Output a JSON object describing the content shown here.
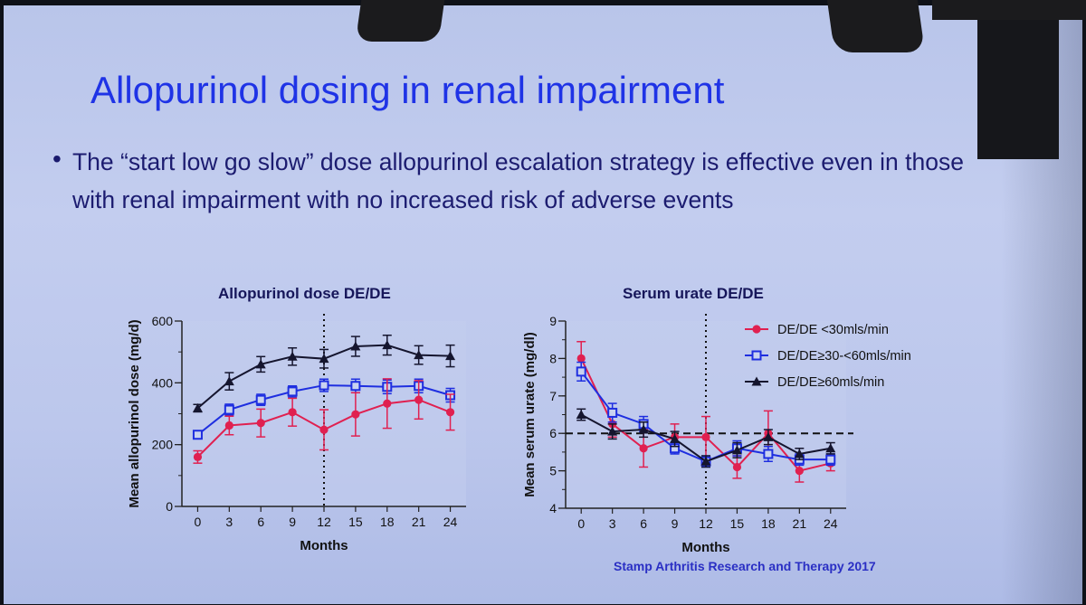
{
  "slide": {
    "title": "Allopurinol dosing in renal impairment",
    "bullet_symbol": "•",
    "bullet": "The “start low go slow” dose allopurinol escalation strategy is effective even in those with renal impairment with no increased risk of adverse events",
    "citation": "Stamp Arthritis Research and Therapy 2017"
  },
  "chart_data": [
    {
      "type": "line",
      "title": "Allopurinol dose DE/DE",
      "xlabel": "Months",
      "ylabel": "Mean allopurinol dose (mg/d)",
      "x": [
        0,
        3,
        6,
        9,
        12,
        15,
        18,
        21,
        24
      ],
      "x_ticks": [
        "0",
        "3",
        "6",
        "9",
        "12",
        "15",
        "18",
        "21",
        "24"
      ],
      "xlim": [
        -1.5,
        25.5
      ],
      "ylim": [
        0,
        600
      ],
      "y_ticks": [
        0,
        200,
        400,
        600
      ],
      "y_tick_labels": [
        "0",
        "200",
        "400",
        "600"
      ],
      "minor_tick_step": 100,
      "vline_x": 12,
      "series": [
        {
          "symbol": "triangle",
          "color": "#15152e",
          "values": [
            318,
            405,
            460,
            485,
            478,
            518,
            522,
            490,
            487
          ],
          "err": [
            12,
            28,
            25,
            28,
            30,
            32,
            32,
            30,
            35
          ]
        },
        {
          "symbol": "square",
          "color": "#1e2ee0",
          "values": [
            232,
            313,
            345,
            372,
            392,
            390,
            387,
            390,
            360
          ],
          "err": [
            10,
            18,
            18,
            18,
            20,
            22,
            22,
            22,
            22
          ]
        },
        {
          "symbol": "circle",
          "color": "#e02050",
          "values": [
            160,
            262,
            270,
            305,
            248,
            298,
            333,
            345,
            305
          ],
          "err": [
            20,
            30,
            45,
            45,
            65,
            70,
            80,
            62,
            58
          ]
        }
      ]
    },
    {
      "type": "line",
      "title": "Serum urate DE/DE",
      "xlabel": "Months",
      "ylabel": "Mean serum urate (mg/dl)",
      "x": [
        0,
        3,
        6,
        9,
        12,
        15,
        18,
        21,
        24
      ],
      "x_ticks": [
        "0",
        "3",
        "6",
        "9",
        "12",
        "15",
        "18",
        "21",
        "24"
      ],
      "xlim": [
        -1.5,
        25.5
      ],
      "ylim": [
        4,
        9
      ],
      "y_ticks": [
        4,
        5,
        6,
        7,
        8,
        9
      ],
      "y_tick_labels": [
        "4",
        "5",
        "6",
        "7",
        "8",
        "9"
      ],
      "minor_tick_step": 0.5,
      "vline_x": 12,
      "hline_y": 6,
      "legend_position": "top-right",
      "series": [
        {
          "name": "DE/DE <30mls/min",
          "symbol": "circle",
          "color": "#e02050",
          "values": [
            8.0,
            6.25,
            5.6,
            5.9,
            5.9,
            5.1,
            6.0,
            5.0,
            5.2
          ],
          "err": [
            0.45,
            0.35,
            0.5,
            0.35,
            0.55,
            0.3,
            0.6,
            0.3,
            0.2
          ]
        },
        {
          "name": "DE/DE≥30-<60mls/min",
          "symbol": "square",
          "color": "#1e2ee0",
          "values": [
            7.65,
            6.55,
            6.25,
            5.6,
            5.25,
            5.6,
            5.45,
            5.3,
            5.3
          ],
          "err": [
            0.25,
            0.25,
            0.2,
            0.15,
            0.15,
            0.2,
            0.2,
            0.15,
            0.15
          ]
        },
        {
          "name": "DE/DE≥60mls/min",
          "symbol": "triangle",
          "color": "#15152e",
          "values": [
            6.5,
            6.05,
            6.1,
            5.85,
            5.25,
            5.55,
            5.9,
            5.45,
            5.6
          ],
          "err": [
            0.15,
            0.2,
            0.2,
            0.2,
            0.15,
            0.2,
            0.2,
            0.15,
            0.15
          ]
        }
      ]
    }
  ]
}
